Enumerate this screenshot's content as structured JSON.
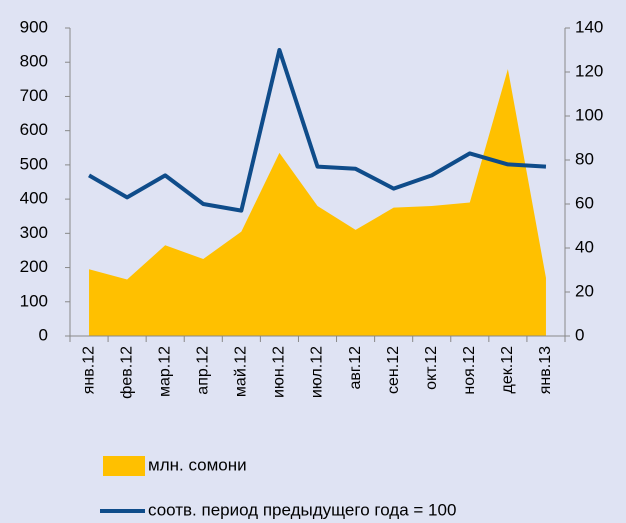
{
  "chart_data": {
    "type": "area",
    "categories": [
      "янв.12",
      "фев.12",
      "мар.12",
      "апр.12",
      "май.12",
      "июн.12",
      "июл.12",
      "авг.12",
      "сен.12",
      "окт.12",
      "ноя.12",
      "дек.12",
      "янв.13"
    ],
    "series": [
      {
        "name": "млн. сомони",
        "type": "area",
        "color": "#ffc000",
        "values": [
          195,
          165,
          265,
          225,
          305,
          535,
          380,
          310,
          375,
          380,
          390,
          780,
          170
        ]
      },
      {
        "name": "соотв. период предыдущего года = 100",
        "type": "line",
        "axis": "y2",
        "color": "#0f4c8a",
        "values": [
          73,
          63,
          73,
          60,
          57,
          130,
          77,
          76,
          67,
          73,
          83,
          78,
          77
        ]
      }
    ],
    "ylim": [
      0,
      900
    ],
    "yticks": [
      0,
      100,
      200,
      300,
      400,
      500,
      600,
      700,
      800,
      900
    ],
    "y2lim": [
      0,
      140
    ],
    "y2ticks": [
      0,
      20,
      40,
      60,
      80,
      100,
      120,
      140
    ],
    "legend": "bottom"
  }
}
